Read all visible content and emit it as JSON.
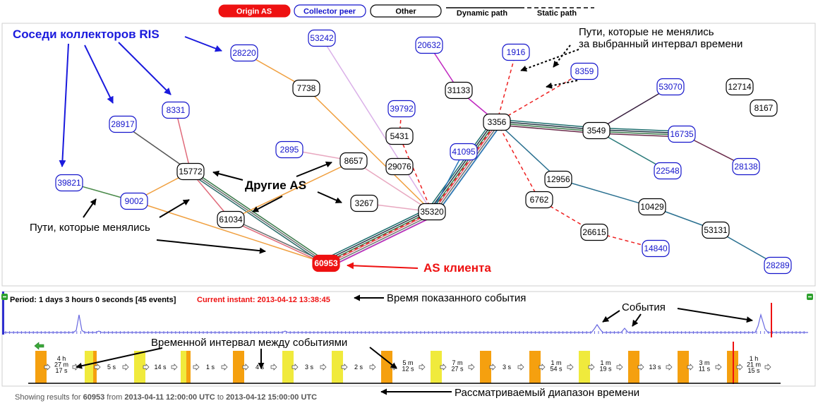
{
  "legend": {
    "origin_label": "Origin AS",
    "collector_label": "Collector peer",
    "other_label": "Other",
    "dynamic_label": "Dynamic path",
    "static_label": "Static path"
  },
  "colors": {
    "origin": "#ee1111",
    "collector_text": "#1515cc",
    "annotation_blue": "#1a1add",
    "annotation_red": "#ee1111",
    "timeline_line": "#6868e0",
    "bar_orange": "#f5a00f",
    "bar_yellow": "#f0ea3c"
  },
  "graph": {
    "nodes": [
      {
        "id": "60953",
        "kind": "origin"
      },
      {
        "id": "28220",
        "kind": "collector"
      },
      {
        "id": "53242",
        "kind": "collector"
      },
      {
        "id": "20632",
        "kind": "collector"
      },
      {
        "id": "1916",
        "kind": "collector"
      },
      {
        "id": "8359",
        "kind": "collector"
      },
      {
        "id": "53070",
        "kind": "collector"
      },
      {
        "id": "16735",
        "kind": "collector"
      },
      {
        "id": "22548",
        "kind": "collector"
      },
      {
        "id": "28138",
        "kind": "collector"
      },
      {
        "id": "28917",
        "kind": "collector"
      },
      {
        "id": "8331",
        "kind": "collector"
      },
      {
        "id": "39821",
        "kind": "collector"
      },
      {
        "id": "9002",
        "kind": "collector"
      },
      {
        "id": "2895",
        "kind": "collector"
      },
      {
        "id": "39792",
        "kind": "collector"
      },
      {
        "id": "41095",
        "kind": "collector"
      },
      {
        "id": "14840",
        "kind": "collector"
      },
      {
        "id": "28289",
        "kind": "collector"
      },
      {
        "id": "7738",
        "kind": "other"
      },
      {
        "id": "31133",
        "kind": "other"
      },
      {
        "id": "12714",
        "kind": "other"
      },
      {
        "id": "8167",
        "kind": "other"
      },
      {
        "id": "3356",
        "kind": "other"
      },
      {
        "id": "3549",
        "kind": "other"
      },
      {
        "id": "5431",
        "kind": "other"
      },
      {
        "id": "29076",
        "kind": "other"
      },
      {
        "id": "8657",
        "kind": "other"
      },
      {
        "id": "15772",
        "kind": "other"
      },
      {
        "id": "61034",
        "kind": "other"
      },
      {
        "id": "3267",
        "kind": "other"
      },
      {
        "id": "35320",
        "kind": "other"
      },
      {
        "id": "12956",
        "kind": "other"
      },
      {
        "id": "6762",
        "kind": "other"
      },
      {
        "id": "10429",
        "kind": "other"
      },
      {
        "id": "26615",
        "kind": "other"
      },
      {
        "id": "53131",
        "kind": "other"
      }
    ],
    "edges": [
      {
        "from": "60953",
        "to": "35320",
        "style": "solid",
        "colors": [
          "#1e6e6e",
          "#223344",
          "#3a7a4a",
          "#e06a7a",
          "#6a7070",
          "#9aa0a8"
        ]
      },
      {
        "from": "60953",
        "to": "35320",
        "style": "dashed",
        "colors": [
          "#ee2222"
        ]
      },
      {
        "from": "60953",
        "to": "35320",
        "style": "solid",
        "colors": [
          "#c028c0"
        ]
      },
      {
        "from": "35320",
        "to": "3356",
        "style": "solid",
        "colors": [
          "#1e6e6e",
          "#223344",
          "#3a7a4a",
          "#e06a7a",
          "#6a7070",
          "#9aa0a8"
        ]
      },
      {
        "from": "35320",
        "to": "3356",
        "style": "dashed",
        "colors": [
          "#ee2222"
        ]
      },
      {
        "from": "35320",
        "to": "3356",
        "style": "solid",
        "colors": [
          "#2878b8"
        ]
      },
      {
        "from": "60953",
        "to": "61034",
        "style": "solid",
        "colors": [
          "#e06a7a",
          "#6a7070"
        ]
      },
      {
        "from": "60953",
        "to": "15772",
        "style": "solid",
        "colors": [
          "#2a6a6a",
          "#6a7070",
          "#3a7a4a"
        ]
      },
      {
        "from": "60953",
        "to": "9002",
        "style": "solid",
        "colors": [
          "#f0a040"
        ]
      },
      {
        "from": "61034",
        "to": "15772",
        "style": "solid",
        "colors": [
          "#e06a7a"
        ]
      },
      {
        "from": "15772",
        "to": "8331",
        "style": "solid",
        "colors": [
          "#e06a7a"
        ]
      },
      {
        "from": "15772",
        "to": "28917",
        "style": "solid",
        "colors": [
          "#555555"
        ]
      },
      {
        "from": "15772",
        "to": "9002",
        "style": "solid",
        "colors": [
          "#f0a040"
        ]
      },
      {
        "from": "9002",
        "to": "39821",
        "style": "solid",
        "colors": [
          "#4a8a4a"
        ]
      },
      {
        "from": "61034",
        "to": "8657",
        "style": "solid",
        "colors": [
          "#f0a040"
        ]
      },
      {
        "from": "8657",
        "to": "2895",
        "style": "solid",
        "colors": [
          "#e8a8c0"
        ]
      },
      {
        "from": "8657",
        "to": "35320",
        "style": "solid",
        "colors": [
          "#e8a8c0"
        ]
      },
      {
        "from": "3267",
        "to": "35320",
        "style": "solid",
        "colors": [
          "#e8a8c0"
        ]
      },
      {
        "from": "35320",
        "to": "7738",
        "style": "solid",
        "colors": [
          "#f0a040"
        ]
      },
      {
        "from": "7738",
        "to": "28220",
        "style": "solid",
        "colors": [
          "#f0a040"
        ]
      },
      {
        "from": "35320",
        "to": "53242",
        "style": "solid",
        "colors": [
          "#dab0e8"
        ]
      },
      {
        "from": "35320",
        "to": "5431",
        "style": "dashed",
        "colors": [
          "#ee2222"
        ]
      },
      {
        "from": "5431",
        "to": "39792",
        "style": "dashed",
        "colors": [
          "#ee2222"
        ]
      },
      {
        "from": "3356",
        "to": "31133",
        "style": "solid",
        "colors": [
          "#c028c0"
        ]
      },
      {
        "from": "31133",
        "to": "20632",
        "style": "solid",
        "colors": [
          "#c028c0"
        ]
      },
      {
        "from": "3356",
        "to": "1916",
        "style": "dashed",
        "colors": [
          "#ee2222"
        ]
      },
      {
        "from": "3356",
        "to": "8359",
        "style": "dashed",
        "colors": [
          "#ee2222"
        ]
      },
      {
        "from": "3356",
        "to": "3549",
        "style": "solid",
        "colors": [
          "#1e6e6e",
          "#223344",
          "#3a7a4a",
          "#6a2a4a"
        ]
      },
      {
        "from": "3549",
        "to": "16735",
        "style": "solid",
        "colors": [
          "#1e6e6e",
          "#223344",
          "#3a7a4a",
          "#6a2a4a"
        ]
      },
      {
        "from": "3549",
        "to": "53070",
        "style": "solid",
        "colors": [
          "#3a2040"
        ]
      },
      {
        "from": "3549",
        "to": "22548",
        "style": "solid",
        "colors": [
          "#2a7a7a"
        ]
      },
      {
        "from": "16735",
        "to": "28138",
        "style": "solid",
        "colors": [
          "#6a2a4a"
        ]
      },
      {
        "from": "3356",
        "to": "12956",
        "style": "solid",
        "colors": [
          "#2a7090"
        ]
      },
      {
        "from": "12956",
        "to": "10429",
        "style": "solid",
        "colors": [
          "#2a7090"
        ]
      },
      {
        "from": "10429",
        "to": "53131",
        "style": "solid",
        "colors": [
          "#2a7090"
        ]
      },
      {
        "from": "53131",
        "to": "28289",
        "style": "solid",
        "colors": [
          "#2a7090"
        ]
      },
      {
        "from": "3356",
        "to": "6762",
        "style": "dashed",
        "colors": [
          "#ee2222"
        ]
      },
      {
        "from": "6762",
        "to": "26615",
        "style": "dashed",
        "colors": [
          "#ee2222"
        ]
      },
      {
        "from": "26615",
        "to": "14840",
        "style": "dashed",
        "colors": [
          "#ee2222"
        ]
      },
      {
        "from": "35320",
        "to": "41095",
        "style": "solid",
        "colors": [
          "#2878b8"
        ]
      }
    ]
  },
  "annotations": {
    "ris_neighbors": "Соседи коллекторов RIS",
    "unchanged_paths_line1": "Пути, которые не менялись",
    "unchanged_paths_line2": "за выбранный интервал времени",
    "other_as": "Другие AS",
    "changed_paths": "Пути, которые менялись",
    "client_as": "AS клиента",
    "shown_event_time": "Время показанного события",
    "events": "События",
    "interval_between_events": "Временной интервал между событиями",
    "time_range": "Рассматриваемый диапазон времени"
  },
  "period": {
    "text": "Period: 1 days 3 hours 0 seconds [45 events]",
    "current_instant": "Current instant: 2013-04-12 13:38:45"
  },
  "intervals": [
    [
      "4 h",
      "27 m",
      "17 s"
    ],
    [
      "5 s"
    ],
    [
      "14 s"
    ],
    [
      "1 s"
    ],
    [
      "4 s"
    ],
    [
      "3 s"
    ],
    [
      "2 s"
    ],
    [
      "5 m",
      "12 s"
    ],
    [
      "7 m",
      "27 s"
    ],
    [
      "3 s"
    ],
    [
      "1 m",
      "54 s"
    ],
    [
      "1 m",
      "19 s"
    ],
    [
      "13 s"
    ],
    [
      "3 m",
      "11 s"
    ],
    [
      "1 h",
      "21 m",
      "15 s"
    ]
  ],
  "footer": {
    "showing_prefix": "Showing results for",
    "asn": "60953",
    "from_word": "from",
    "from_time": "2013-04-11 12:00:00 UTC",
    "to_word": "to",
    "to_time": "2013-04-12 15:00:00 UTC"
  }
}
